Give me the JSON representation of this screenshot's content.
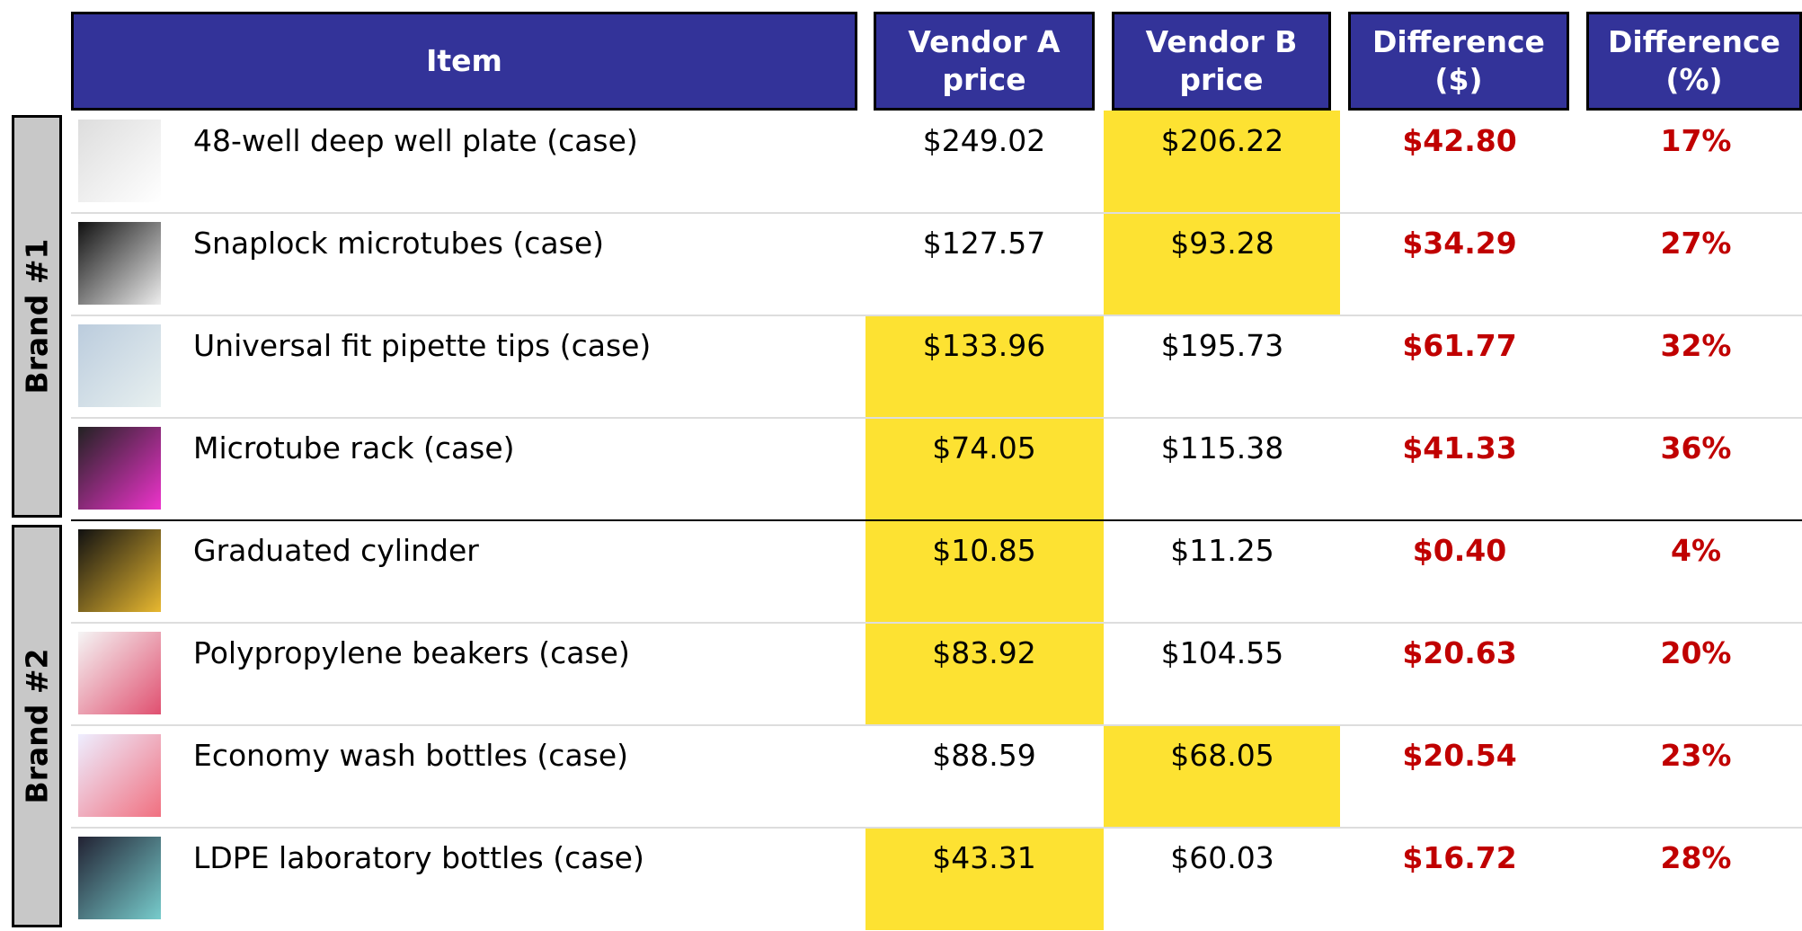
{
  "table": {
    "header_color": "#333399",
    "highlight_color": "#fde232",
    "difference_color": "#c00000",
    "columns": [
      "Item",
      "Vendor A\nprice",
      "Vendor B\nprice",
      "Difference\n($)",
      "Difference\n(%)"
    ],
    "groups": [
      {
        "label": "Brand #1",
        "rows": [
          {
            "item": "48-well deep well plate (case)",
            "vendor_a": "$249.02",
            "vendor_b": "$206.22",
            "difference": "$42.80",
            "percent": "17%"
          },
          {
            "item": "Snaplock microtubes (case)",
            "vendor_a": "$127.57",
            "vendor_b": "$93.28",
            "difference": "$34.29",
            "percent": "27%"
          },
          {
            "item": "Universal fit pipette tips (case)",
            "vendor_a": "$133.96",
            "vendor_b": "$195.73",
            "difference": "$61.77",
            "percent": "32%"
          },
          {
            "item": "Microtube rack (case)",
            "vendor_a": "$74.05",
            "vendor_b": "$115.38",
            "difference": "$41.33",
            "percent": "36%"
          }
        ]
      },
      {
        "label": "Brand #2",
        "rows": [
          {
            "item": "Graduated cylinder",
            "vendor_a": "$10.85",
            "vendor_b": "$11.25",
            "difference": "$0.40",
            "percent": "4%"
          },
          {
            "item": "Polypropylene beakers (case)",
            "vendor_a": "$83.92",
            "vendor_b": "$104.55",
            "difference": "$20.63",
            "percent": "20%"
          },
          {
            "item": "Economy wash bottles (case)",
            "vendor_a": "$88.59",
            "vendor_b": "$68.05",
            "difference": "$20.54",
            "percent": "23%"
          },
          {
            "item": "LDPE laboratory bottles (case)",
            "vendor_a": "$43.31",
            "vendor_b": "$60.03",
            "difference": "$16.72",
            "percent": "28%"
          }
        ]
      }
    ]
  }
}
